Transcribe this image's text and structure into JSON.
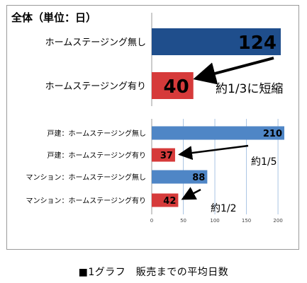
{
  "chart_data": [
    {
      "type": "bar",
      "orientation": "horizontal",
      "title": "全体（単位：日）",
      "categories": [
        "ホームステージング無し",
        "ホームステージング有り"
      ],
      "values": [
        124,
        40
      ],
      "bar_colors": [
        "#1f4e8c",
        "#d63a3a"
      ],
      "annotations": [
        {
          "text": "約1/3に短縮",
          "arrow": true
        }
      ]
    },
    {
      "type": "bar",
      "orientation": "horizontal",
      "categories": [
        "戸建：ホームステージング無し",
        "戸建：ホームステージング有り",
        "マンション：ホームステージング無し",
        "マンション：ホームステージング有り"
      ],
      "values": [
        210,
        37,
        88,
        42
      ],
      "bar_colors": [
        "#4f86c6",
        "#d63a3a",
        "#4f86c6",
        "#d63a3a"
      ],
      "xlim": [
        0,
        210
      ],
      "xticks": [
        0,
        50,
        100,
        150,
        200
      ],
      "grid": true,
      "annotations": [
        {
          "text": "約1/5",
          "arrow": true
        },
        {
          "text": "約1/2",
          "arrow": true
        }
      ]
    }
  ],
  "caption": "■1グラフ　販売までの平均日数",
  "colors": {
    "no_staging_dark": "#1f4e8c",
    "no_staging_light": "#4f86c6",
    "with_staging": "#d63a3a",
    "grid": "#a9c4e4"
  }
}
